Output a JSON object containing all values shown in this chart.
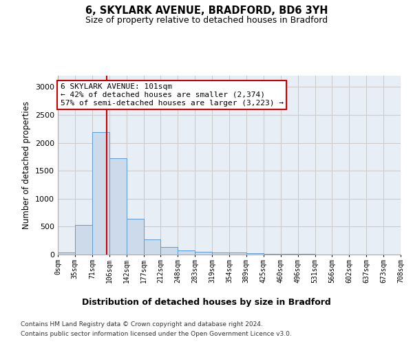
{
  "title_line1": "6, SKYLARK AVENUE, BRADFORD, BD6 3YH",
  "title_line2": "Size of property relative to detached houses in Bradford",
  "xlabel": "Distribution of detached houses by size in Bradford",
  "ylabel": "Number of detached properties",
  "bin_edges": [
    0,
    35,
    71,
    106,
    142,
    177,
    212,
    248,
    283,
    319,
    354,
    389,
    425,
    460,
    496,
    531,
    566,
    602,
    637,
    673,
    708
  ],
  "bar_heights": [
    35,
    525,
    2190,
    1720,
    635,
    270,
    130,
    70,
    45,
    35,
    40,
    20,
    15,
    10,
    7,
    5,
    5,
    5,
    3,
    2
  ],
  "bar_color": "#ccdaea",
  "bar_edgecolor": "#5b9bd5",
  "property_size": 101,
  "vline_color": "#cc0000",
  "annotation_text": "6 SKYLARK AVENUE: 101sqm\n← 42% of detached houses are smaller (2,374)\n57% of semi-detached houses are larger (3,223) →",
  "annotation_box_edgecolor": "#cc0000",
  "annotation_box_facecolor": "#ffffff",
  "ylim": [
    0,
    3200
  ],
  "yticks": [
    0,
    500,
    1000,
    1500,
    2000,
    2500,
    3000
  ],
  "grid_color": "#cccccc",
  "background_color": "#e8eef5",
  "footer_line1": "Contains HM Land Registry data © Crown copyright and database right 2024.",
  "footer_line2": "Contains public sector information licensed under the Open Government Licence v3.0.",
  "tick_labels": [
    "0sqm",
    "35sqm",
    "71sqm",
    "106sqm",
    "142sqm",
    "177sqm",
    "212sqm",
    "248sqm",
    "283sqm",
    "319sqm",
    "354sqm",
    "389sqm",
    "425sqm",
    "460sqm",
    "496sqm",
    "531sqm",
    "566sqm",
    "602sqm",
    "637sqm",
    "673sqm",
    "708sqm"
  ]
}
